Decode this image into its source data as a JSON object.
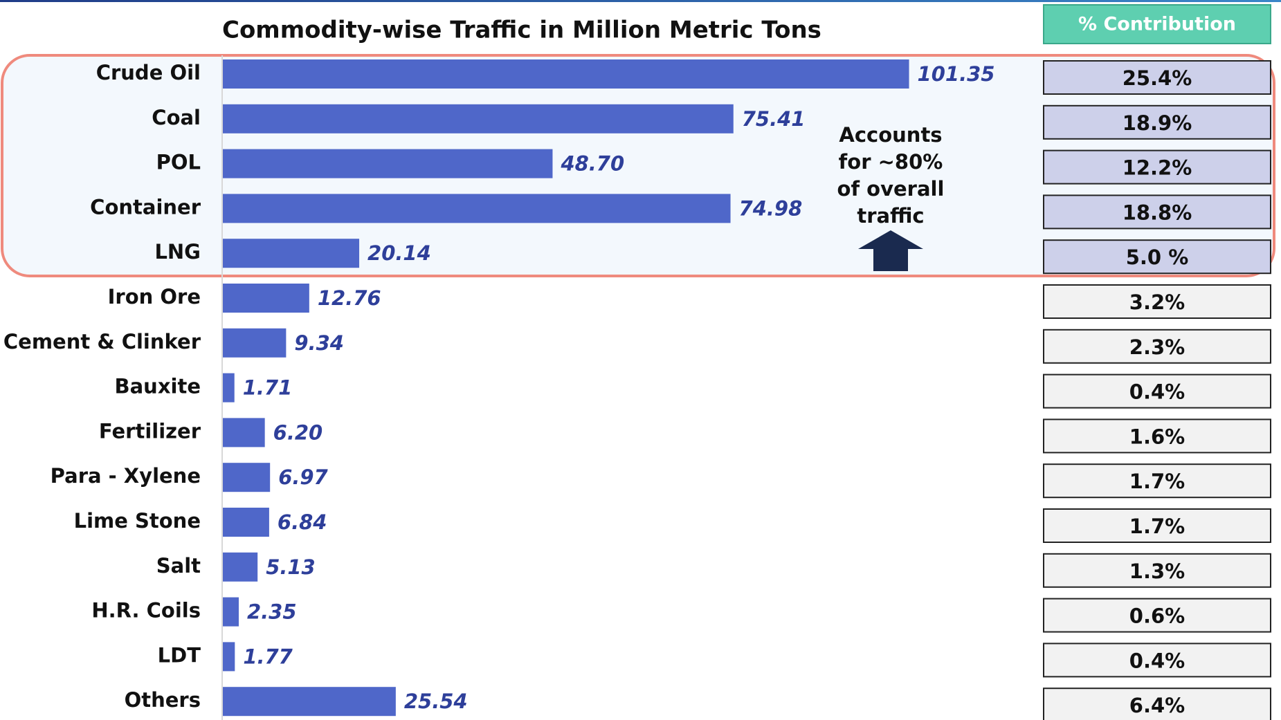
{
  "chart_data": {
    "type": "hbar",
    "title": "Commodity-wise Traffic in Million Metric Tons",
    "categories": [
      "Crude Oil",
      "Coal",
      "POL",
      "Container",
      "LNG",
      "Iron Ore",
      "Cement & Clinker",
      "Bauxite",
      "Fertilizer",
      "Para - Xylene",
      "Lime Stone",
      "Salt",
      "H.R. Coils",
      "LDT",
      "Others"
    ],
    "values": [
      101.35,
      75.41,
      48.7,
      74.98,
      20.14,
      12.76,
      9.34,
      1.71,
      6.2,
      6.97,
      6.84,
      5.13,
      2.35,
      1.77,
      25.54
    ],
    "value_labels": [
      "101.35",
      "75.41",
      "48.70",
      "74.98",
      "20.14",
      "12.76",
      "9.34",
      "1.71",
      "6.20",
      "6.97",
      "6.84",
      "5.13",
      "2.35",
      "1.77",
      "25.54"
    ],
    "color": "#4f67c9",
    "xlim": [
      0,
      120
    ],
    "annotation": [
      "Accounts",
      "for ~80%",
      "of overall",
      "traffic"
    ]
  },
  "table": {
    "header": "% Contribution",
    "rows": [
      "25.4%",
      "18.9%",
      "12.2%",
      "18.8%",
      "5.0 %",
      "3.2%",
      "2.3%",
      "0.4%",
      "1.6%",
      "1.7%",
      "1.7%",
      "1.3%",
      "0.6%",
      "0.4%",
      "6.4%"
    ]
  }
}
